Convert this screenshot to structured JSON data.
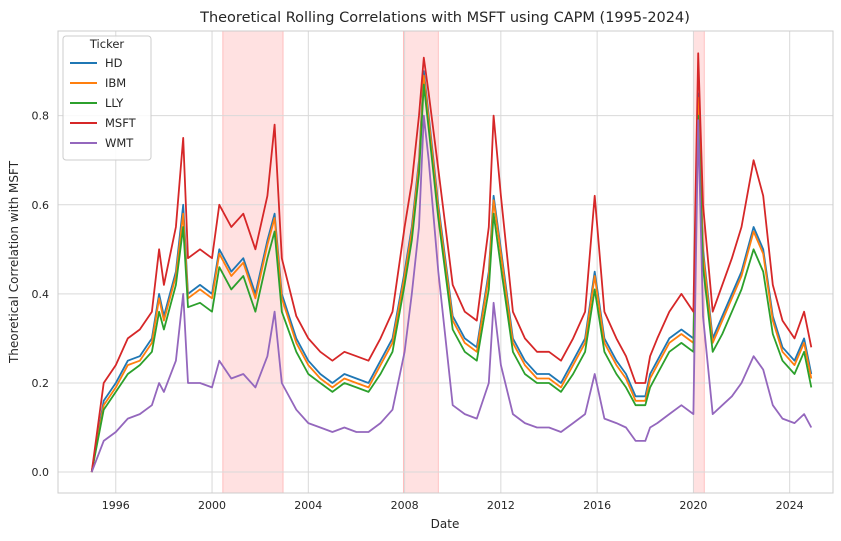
{
  "chart_data": {
    "type": "line",
    "title": "Theoretical Rolling Correlations with MSFT using CAPM (1995-2024)",
    "xlabel": "Date",
    "ylabel": "Theoretical Correlation with MSFT",
    "xlim": [
      1993.6,
      2025.8
    ],
    "ylim": [
      -0.047,
      0.99
    ],
    "x_ticks": [
      1996,
      2000,
      2004,
      2008,
      2012,
      2016,
      2020,
      2024
    ],
    "x_tick_labels": [
      "1996",
      "2000",
      "2004",
      "2008",
      "2012",
      "2016",
      "2020",
      "2024"
    ],
    "y_ticks": [
      0.0,
      0.2,
      0.4,
      0.6,
      0.8
    ],
    "y_tick_labels": [
      "0.0",
      "0.2",
      "0.4",
      "0.6",
      "0.8"
    ],
    "grid": true,
    "legend_position": "top-left",
    "legend_title": "Ticker",
    "shaded_periods": [
      {
        "start": 2000.45,
        "end": 2002.95,
        "color": "#ffb3b3"
      },
      {
        "start": 2007.95,
        "end": 2009.4,
        "color": "#ffb3b3"
      },
      {
        "start": 2020.0,
        "end": 2020.45,
        "color": "#ffb3b3"
      }
    ],
    "x": [
      1995.0,
      1995.5,
      1996.0,
      1996.5,
      1997.0,
      1997.5,
      1997.8,
      1998.0,
      1998.5,
      1998.8,
      1999.0,
      1999.5,
      2000.0,
      2000.3,
      2000.8,
      2001.3,
      2001.8,
      2002.3,
      2002.6,
      2002.9,
      2003.5,
      2004.0,
      2004.5,
      2005.0,
      2005.5,
      2006.0,
      2006.5,
      2007.0,
      2007.5,
      2008.0,
      2008.3,
      2008.6,
      2008.8,
      2009.0,
      2009.4,
      2010.0,
      2010.5,
      2011.0,
      2011.5,
      2011.7,
      2012.0,
      2012.5,
      2013.0,
      2013.5,
      2014.0,
      2014.5,
      2015.0,
      2015.5,
      2015.9,
      2016.3,
      2016.8,
      2017.2,
      2017.6,
      2018.0,
      2018.2,
      2018.5,
      2019.0,
      2019.5,
      2020.0,
      2020.2,
      2020.4,
      2020.8,
      2021.2,
      2021.6,
      2022.0,
      2022.5,
      2022.9,
      2023.3,
      2023.7,
      2024.2,
      2024.6,
      2024.9
    ],
    "series": [
      {
        "name": "HD",
        "color": "#1f77b4",
        "values": [
          0.0,
          0.16,
          0.2,
          0.25,
          0.26,
          0.3,
          0.4,
          0.35,
          0.45,
          0.6,
          0.4,
          0.42,
          0.4,
          0.5,
          0.45,
          0.48,
          0.4,
          0.52,
          0.58,
          0.4,
          0.3,
          0.25,
          0.22,
          0.2,
          0.22,
          0.21,
          0.2,
          0.25,
          0.3,
          0.45,
          0.55,
          0.7,
          0.9,
          0.8,
          0.6,
          0.35,
          0.3,
          0.28,
          0.45,
          0.62,
          0.5,
          0.3,
          0.25,
          0.22,
          0.22,
          0.2,
          0.25,
          0.3,
          0.45,
          0.3,
          0.25,
          0.22,
          0.17,
          0.17,
          0.22,
          0.25,
          0.3,
          0.32,
          0.3,
          0.85,
          0.5,
          0.3,
          0.35,
          0.4,
          0.45,
          0.55,
          0.5,
          0.35,
          0.28,
          0.25,
          0.3,
          0.22
        ]
      },
      {
        "name": "IBM",
        "color": "#ff7f0e",
        "values": [
          0.0,
          0.15,
          0.19,
          0.24,
          0.25,
          0.29,
          0.39,
          0.34,
          0.44,
          0.58,
          0.39,
          0.41,
          0.39,
          0.49,
          0.44,
          0.47,
          0.39,
          0.51,
          0.57,
          0.39,
          0.29,
          0.24,
          0.21,
          0.19,
          0.21,
          0.2,
          0.19,
          0.24,
          0.29,
          0.44,
          0.54,
          0.69,
          0.89,
          0.79,
          0.59,
          0.34,
          0.29,
          0.27,
          0.44,
          0.61,
          0.49,
          0.29,
          0.24,
          0.21,
          0.21,
          0.19,
          0.24,
          0.29,
          0.44,
          0.29,
          0.24,
          0.21,
          0.16,
          0.16,
          0.21,
          0.24,
          0.29,
          0.31,
          0.29,
          0.84,
          0.49,
          0.29,
          0.34,
          0.39,
          0.44,
          0.54,
          0.49,
          0.34,
          0.27,
          0.24,
          0.29,
          0.21
        ]
      },
      {
        "name": "LLY",
        "color": "#2ca02c",
        "values": [
          0.0,
          0.14,
          0.18,
          0.22,
          0.24,
          0.27,
          0.36,
          0.32,
          0.42,
          0.55,
          0.37,
          0.38,
          0.36,
          0.46,
          0.41,
          0.44,
          0.36,
          0.48,
          0.54,
          0.36,
          0.27,
          0.22,
          0.2,
          0.18,
          0.2,
          0.19,
          0.18,
          0.22,
          0.27,
          0.42,
          0.52,
          0.67,
          0.87,
          0.77,
          0.57,
          0.32,
          0.27,
          0.25,
          0.41,
          0.58,
          0.46,
          0.27,
          0.22,
          0.2,
          0.2,
          0.18,
          0.22,
          0.27,
          0.41,
          0.27,
          0.22,
          0.19,
          0.15,
          0.15,
          0.19,
          0.22,
          0.27,
          0.29,
          0.27,
          0.8,
          0.46,
          0.27,
          0.31,
          0.36,
          0.41,
          0.5,
          0.45,
          0.31,
          0.25,
          0.22,
          0.27,
          0.19
        ]
      },
      {
        "name": "MSFT",
        "color": "#d62728",
        "values": [
          0.0,
          0.2,
          0.24,
          0.3,
          0.32,
          0.36,
          0.5,
          0.42,
          0.55,
          0.75,
          0.48,
          0.5,
          0.48,
          0.6,
          0.55,
          0.58,
          0.5,
          0.62,
          0.78,
          0.48,
          0.35,
          0.3,
          0.27,
          0.25,
          0.27,
          0.26,
          0.25,
          0.3,
          0.36,
          0.55,
          0.65,
          0.8,
          0.93,
          0.85,
          0.68,
          0.42,
          0.36,
          0.34,
          0.55,
          0.8,
          0.62,
          0.36,
          0.3,
          0.27,
          0.27,
          0.25,
          0.3,
          0.36,
          0.62,
          0.36,
          0.3,
          0.26,
          0.2,
          0.2,
          0.26,
          0.3,
          0.36,
          0.4,
          0.36,
          0.94,
          0.6,
          0.36,
          0.42,
          0.48,
          0.55,
          0.7,
          0.62,
          0.42,
          0.34,
          0.3,
          0.36,
          0.28
        ]
      },
      {
        "name": "WMT",
        "color": "#9467bd",
        "values": [
          0.0,
          0.07,
          0.09,
          0.12,
          0.13,
          0.15,
          0.2,
          0.18,
          0.25,
          0.4,
          0.2,
          0.2,
          0.19,
          0.25,
          0.21,
          0.22,
          0.19,
          0.26,
          0.36,
          0.2,
          0.14,
          0.11,
          0.1,
          0.09,
          0.1,
          0.09,
          0.09,
          0.11,
          0.14,
          0.27,
          0.4,
          0.55,
          0.8,
          0.7,
          0.45,
          0.15,
          0.13,
          0.12,
          0.2,
          0.38,
          0.24,
          0.13,
          0.11,
          0.1,
          0.1,
          0.09,
          0.11,
          0.13,
          0.22,
          0.12,
          0.11,
          0.1,
          0.07,
          0.07,
          0.1,
          0.11,
          0.13,
          0.15,
          0.13,
          0.79,
          0.35,
          0.13,
          0.15,
          0.17,
          0.2,
          0.26,
          0.23,
          0.15,
          0.12,
          0.11,
          0.13,
          0.1
        ]
      }
    ]
  }
}
